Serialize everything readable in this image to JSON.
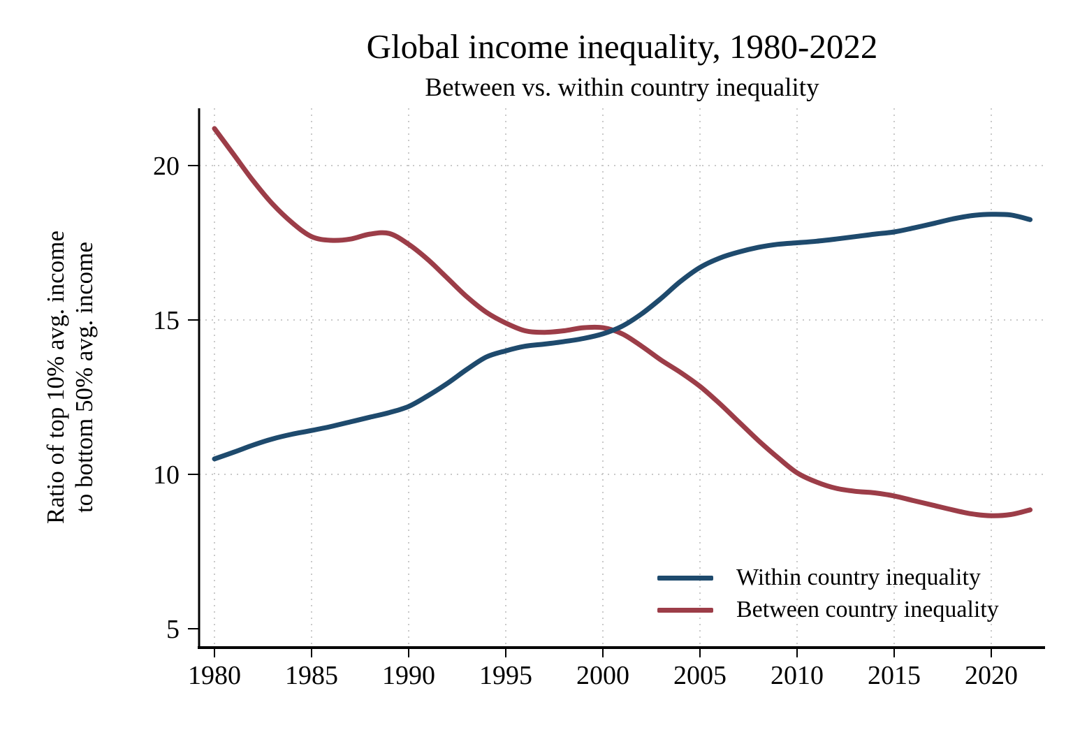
{
  "chart_data": {
    "type": "line",
    "title": "Global income inequality, 1980-2022",
    "subtitle": "Between vs. within country inequality",
    "ylabel_line1": "Ratio of top 10% avg. income",
    "ylabel_line2": "to bottom 50% avg. income",
    "xlabel": "",
    "x_ticks": [
      1980,
      1985,
      1990,
      1995,
      2000,
      2005,
      2010,
      2015,
      2020
    ],
    "y_ticks": [
      5,
      10,
      15,
      20
    ],
    "ylim": [
      4.4,
      21.9
    ],
    "xlim": [
      1979.2,
      2023.4
    ],
    "grid": {
      "style": "dotted",
      "color": "#c9c9c9",
      "horizontal_at": [
        10,
        15,
        20
      ],
      "vertical_at": [
        1980,
        1985,
        1990,
        1995,
        2000,
        2005,
        2010,
        2015,
        2020
      ]
    },
    "legend_position": "inside-bottom-right",
    "x": [
      1980,
      1981,
      1982,
      1983,
      1984,
      1985,
      1986,
      1987,
      1988,
      1989,
      1990,
      1991,
      1992,
      1993,
      1994,
      1995,
      1996,
      1997,
      1998,
      1999,
      2000,
      2001,
      2002,
      2003,
      2004,
      2005,
      2006,
      2007,
      2008,
      2009,
      2010,
      2011,
      2012,
      2013,
      2014,
      2015,
      2016,
      2017,
      2018,
      2019,
      2020,
      2021,
      2022
    ],
    "series": [
      {
        "name": "Within country inequality",
        "color": "#1e4a6d",
        "values": [
          10.5,
          10.72,
          10.95,
          11.15,
          11.3,
          11.42,
          11.55,
          11.7,
          11.85,
          12.0,
          12.2,
          12.55,
          12.95,
          13.4,
          13.8,
          14.0,
          14.15,
          14.22,
          14.3,
          14.4,
          14.55,
          14.8,
          15.2,
          15.7,
          16.25,
          16.7,
          17.0,
          17.2,
          17.35,
          17.45,
          17.5,
          17.55,
          17.62,
          17.7,
          17.78,
          17.85,
          17.98,
          18.12,
          18.27,
          18.38,
          18.42,
          18.4,
          18.25
        ]
      },
      {
        "name": "Between country inequality",
        "color": "#9c3d48",
        "values": [
          21.2,
          20.35,
          19.5,
          18.75,
          18.15,
          17.7,
          17.58,
          17.62,
          17.78,
          17.8,
          17.45,
          16.95,
          16.35,
          15.75,
          15.25,
          14.9,
          14.65,
          14.6,
          14.65,
          14.75,
          14.75,
          14.55,
          14.15,
          13.7,
          13.3,
          12.85,
          12.3,
          11.7,
          11.1,
          10.55,
          10.05,
          9.75,
          9.55,
          9.45,
          9.4,
          9.3,
          9.15,
          9.0,
          8.85,
          8.72,
          8.66,
          8.7,
          8.85
        ]
      }
    ],
    "axis_color": "#000000"
  }
}
